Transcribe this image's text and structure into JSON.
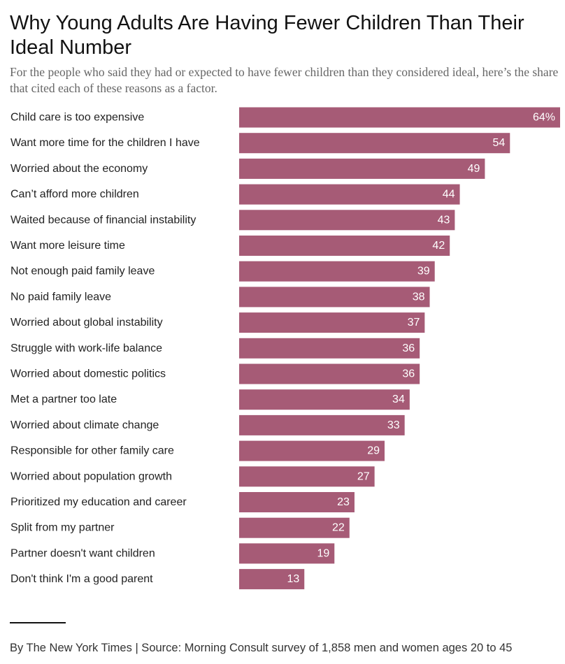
{
  "header": {
    "title": "Why Young Adults Are Having Fewer Children Than Their Ideal Number",
    "subtitle": "For the people who said they had or expected to have fewer children than they considered ideal, here’s the share that cited each of these reasons as a factor."
  },
  "footer": {
    "source": "By The New York Times | Source: Morning Consult survey of 1,858 men and women ages 20 to 45"
  },
  "colors": {
    "bar": "#a65b76",
    "bar_label": "#ffffff",
    "category_label": "#222222"
  },
  "chart_data": {
    "type": "bar",
    "orientation": "horizontal",
    "title": "Why Young Adults Are Having Fewer Children Than Their Ideal Number",
    "subtitle": "For the people who said they had or expected to have fewer children than they considered ideal, here’s the share that cited each of these reasons as a factor.",
    "xlabel": "",
    "ylabel": "",
    "unit": "%",
    "xlim": [
      0,
      64
    ],
    "grid": false,
    "legend": "none",
    "categories": [
      "Child care is too expensive",
      "Want more time for the children I have",
      "Worried about the economy",
      "Can’t afford more children",
      "Waited because of financial instability",
      "Want more leisure time",
      "Not enough paid family leave",
      "No paid family leave",
      "Worried about global instability",
      "Struggle with work-life balance",
      "Worried about domestic politics",
      "Met a partner too late",
      "Worried about climate change",
      "Responsible for other family care",
      "Worried about population growth",
      "Prioritized my education and career",
      "Split from my partner",
      "Partner doesn't want children",
      "Don't think I'm a good parent"
    ],
    "values": [
      64,
      54,
      49,
      44,
      43,
      42,
      39,
      38,
      37,
      36,
      36,
      34,
      33,
      29,
      27,
      23,
      22,
      19,
      13
    ],
    "value_labels": [
      "64%",
      "54",
      "49",
      "44",
      "43",
      "42",
      "39",
      "38",
      "37",
      "36",
      "36",
      "34",
      "33",
      "29",
      "27",
      "23",
      "22",
      "19",
      "13"
    ]
  }
}
